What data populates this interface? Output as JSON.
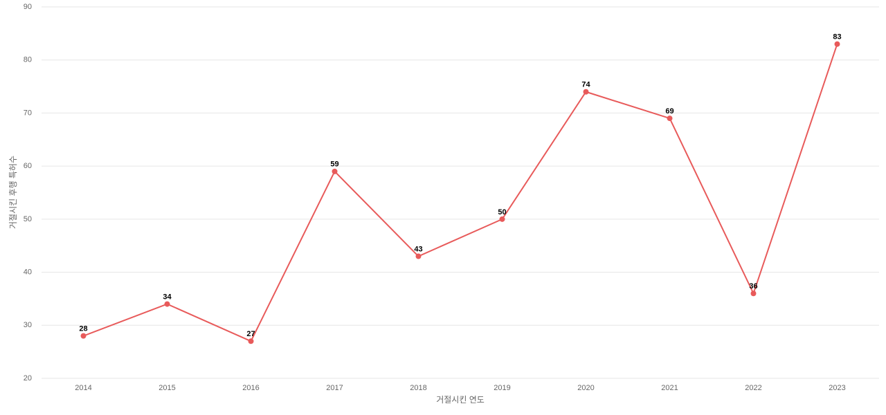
{
  "chart_data": {
    "type": "line",
    "x_label": "거절시킨 연도",
    "y_label": "거절시킨 후행 특허수",
    "categories": [
      "2014",
      "2015",
      "2016",
      "2017",
      "2018",
      "2019",
      "2020",
      "2021",
      "2022",
      "2023"
    ],
    "values": [
      28,
      34,
      27,
      59,
      43,
      50,
      74,
      69,
      36,
      83
    ],
    "color": "#e85a5a",
    "ylim": [
      20,
      90
    ],
    "yticks": [
      20,
      30,
      40,
      50,
      60,
      70,
      80,
      90
    ],
    "grid": true
  }
}
